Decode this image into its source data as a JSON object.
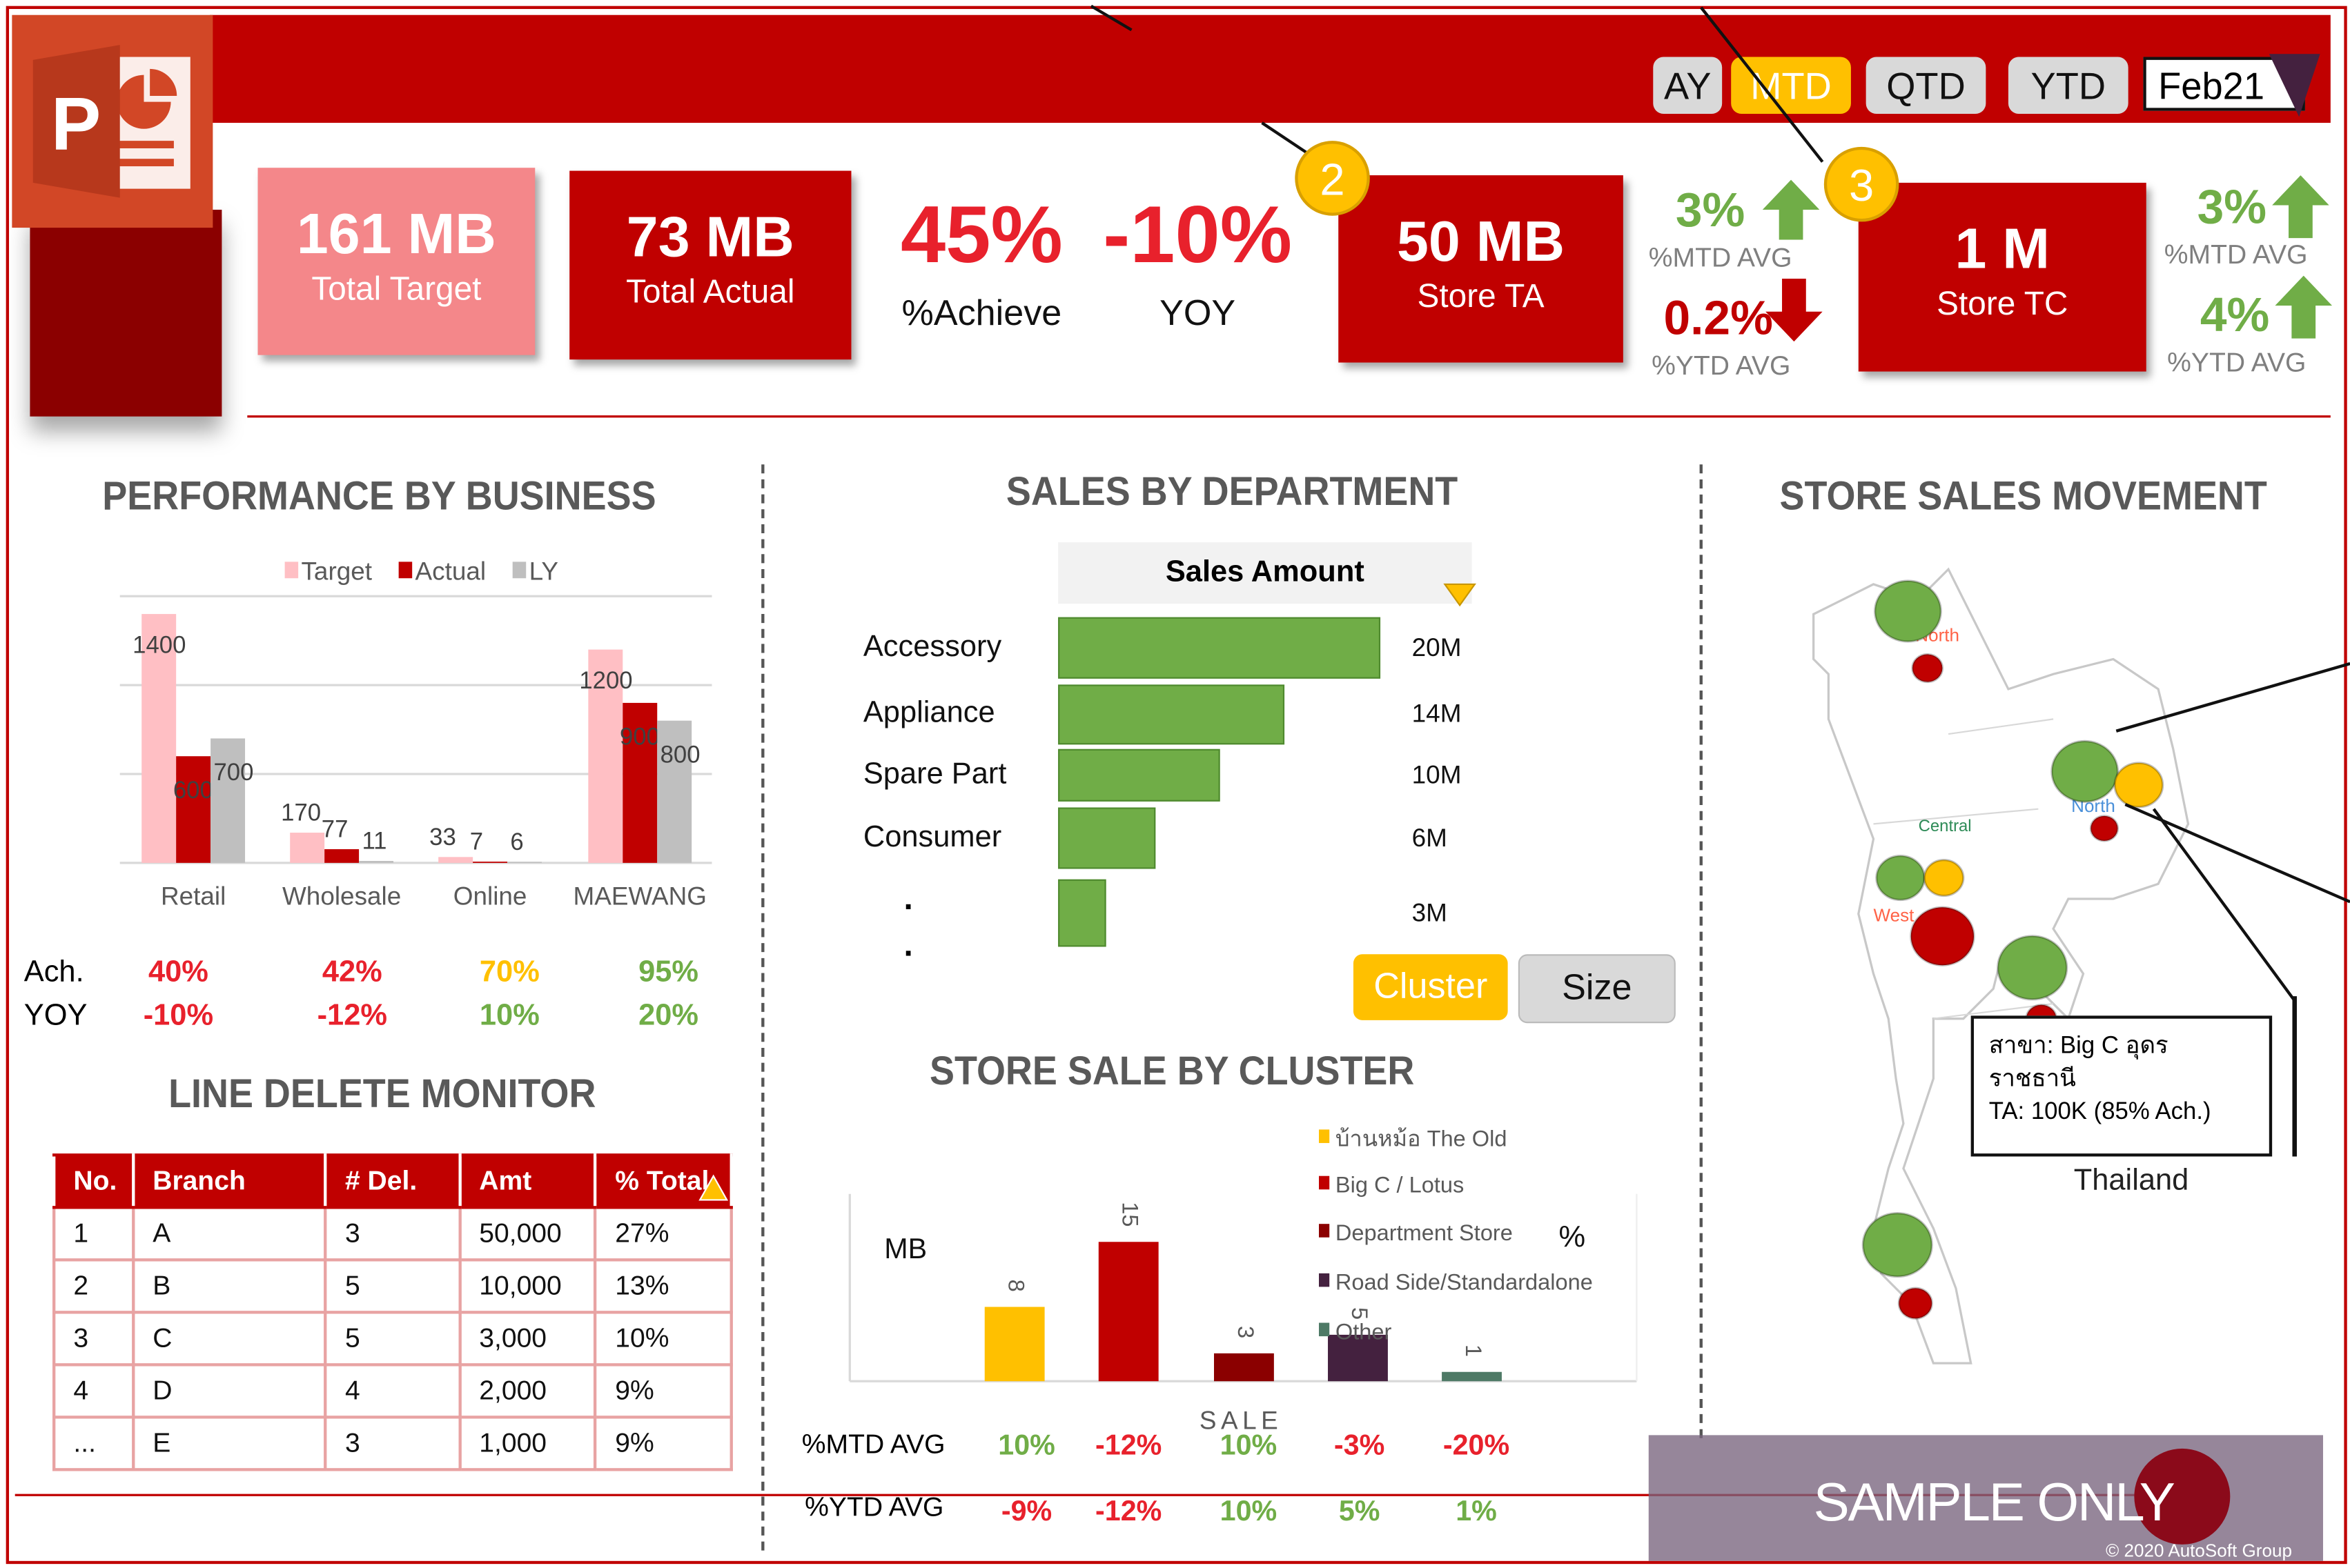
{
  "header": {
    "period_buttons": [
      {
        "label": "AY",
        "active": false
      },
      {
        "label": "MTD",
        "active": true
      },
      {
        "label": "QTD",
        "active": false
      },
      {
        "label": "YTD",
        "active": false
      }
    ],
    "month_select": "Feb21",
    "app_icon": "powerpoint-icon"
  },
  "kpis": {
    "total_target": {
      "value": "161 MB",
      "label": "Total Target"
    },
    "total_actual": {
      "value": "73 MB",
      "label": "Total Actual"
    },
    "achieve": {
      "value": "45%",
      "label": "%Achieve"
    },
    "yoy": {
      "value": "-10%",
      "label": "YOY"
    },
    "store_ta": {
      "value": "50 MB",
      "label": "Store TA",
      "badge": "2",
      "mtd": {
        "value": "3%",
        "label": "%MTD AVG",
        "trend": "up"
      },
      "ytd": {
        "value": "0.2%",
        "label": "%YTD AVG",
        "trend": "down"
      }
    },
    "store_tc": {
      "value": "1 M",
      "label": "Store TC",
      "badge": "3",
      "mtd": {
        "value": "3%",
        "label": "%MTD AVG",
        "trend": "up"
      },
      "ytd": {
        "value": "4%",
        "label": "%YTD AVG",
        "trend": "up"
      }
    }
  },
  "performance": {
    "title": "PERFORMANCE BY BUSINESS",
    "ach_label": "Ach.",
    "yoy_label": "YOY",
    "ach": [
      {
        "v": "40%",
        "c": "#e8212c"
      },
      {
        "v": "42%",
        "c": "#e8212c"
      },
      {
        "v": "70%",
        "c": "#ffc000"
      },
      {
        "v": "95%",
        "c": "#70ad47"
      }
    ],
    "yoy": [
      {
        "v": "-10%",
        "c": "#e8212c"
      },
      {
        "v": "-12%",
        "c": "#e8212c"
      },
      {
        "v": "10%",
        "c": "#70ad47"
      },
      {
        "v": "20%",
        "c": "#70ad47"
      }
    ]
  },
  "chart_data": [
    {
      "type": "bar",
      "categories": [
        "Retail",
        "Wholesale",
        "Online",
        "MAEWANG"
      ],
      "series": [
        {
          "name": "Target",
          "values": [
            1400,
            170,
            33,
            1200
          ],
          "color": "#ffbfc4"
        },
        {
          "name": "Actual",
          "values": [
            600,
            77,
            7,
            900
          ],
          "color": "#c00000"
        },
        {
          "name": "LY",
          "values": [
            700,
            11,
            6,
            800
          ],
          "color": "#bfbfbf"
        }
      ],
      "ylim": [
        0,
        1500
      ],
      "grid": true,
      "legend": "top"
    },
    {
      "type": "bar",
      "orientation": "horizontal",
      "header": "Sales Amount",
      "categories": [
        "Accessory",
        "Appliance",
        "Spare Part",
        "Consumer",
        "."
      ],
      "values": [
        20,
        14,
        10,
        6,
        3
      ],
      "labels": [
        "20M",
        "14M",
        "10M",
        "6M",
        "3M"
      ],
      "color": "#70ad47"
    },
    {
      "type": "bar",
      "ylabel": "MB",
      "xlabel": "SALE",
      "right_label": "%",
      "series": [
        {
          "name": "บ้านหม้อ The Old",
          "values": [
            8
          ],
          "color": "#ffc000"
        },
        {
          "name": "Big C / Lotus",
          "values": [
            15
          ],
          "color": "#c00000"
        },
        {
          "name": "Department Store",
          "values": [
            3
          ],
          "color": "#8b0000"
        },
        {
          "name": "Road Side/Standardalone",
          "values": [
            5
          ],
          "color": "#44213f"
        },
        {
          "name": "Other",
          "values": [
            1
          ],
          "color": "#4e7a66"
        }
      ],
      "legend": "right"
    }
  ],
  "department": {
    "title": "SALES BY DEPARTMENT",
    "extra_dot": ".",
    "cluster_btn": "Cluster",
    "size_btn": "Size"
  },
  "cluster": {
    "title": "STORE SALE BY CLUSTER",
    "mtd_label": "%MTD AVG",
    "ytd_label": "%YTD AVG",
    "mtd": [
      {
        "v": "10%",
        "c": "#70ad47"
      },
      {
        "v": "-12%",
        "c": "#e8212c"
      },
      {
        "v": "10%",
        "c": "#70ad47"
      },
      {
        "v": "-3%",
        "c": "#e8212c"
      },
      {
        "v": "-20%",
        "c": "#e8212c"
      }
    ],
    "ytd": [
      {
        "v": "-9%",
        "c": "#e8212c"
      },
      {
        "v": "-12%",
        "c": "#e8212c"
      },
      {
        "v": "10%",
        "c": "#70ad47"
      },
      {
        "v": "5%",
        "c": "#70ad47"
      },
      {
        "v": "1%",
        "c": "#70ad47"
      }
    ]
  },
  "line_delete": {
    "title": "LINE DELETE MONITOR",
    "columns": [
      "No.",
      "Branch",
      "# Del.",
      "Amt",
      "% Total"
    ],
    "rows": [
      [
        "1",
        "A",
        "3",
        "50,000",
        "27%"
      ],
      [
        "2",
        "B",
        "5",
        "10,000",
        "13%"
      ],
      [
        "3",
        "C",
        "5",
        "3,000",
        "10%"
      ],
      [
        "4",
        "D",
        "4",
        "2,000",
        "9%"
      ],
      [
        "...",
        "E",
        "3",
        "1,000",
        "9%"
      ]
    ]
  },
  "map": {
    "title": "STORE SALES MOVEMENT",
    "region_labels": {
      "north": "North",
      "central": "Central",
      "west": "West",
      "northeast": "North"
    },
    "tooltip_line1": "สาขา: Big C อุดรราชธานี",
    "tooltip_line2": "TA: 100K (85% Ach.)",
    "caption": "Thailand",
    "colors": {
      "good": "#70ad47",
      "warn": "#ffc000",
      "bad": "#c00000"
    }
  },
  "watermark": {
    "text": "SAMPLE ONLY",
    "copyright": "© 2020 AutoSoft Group"
  }
}
